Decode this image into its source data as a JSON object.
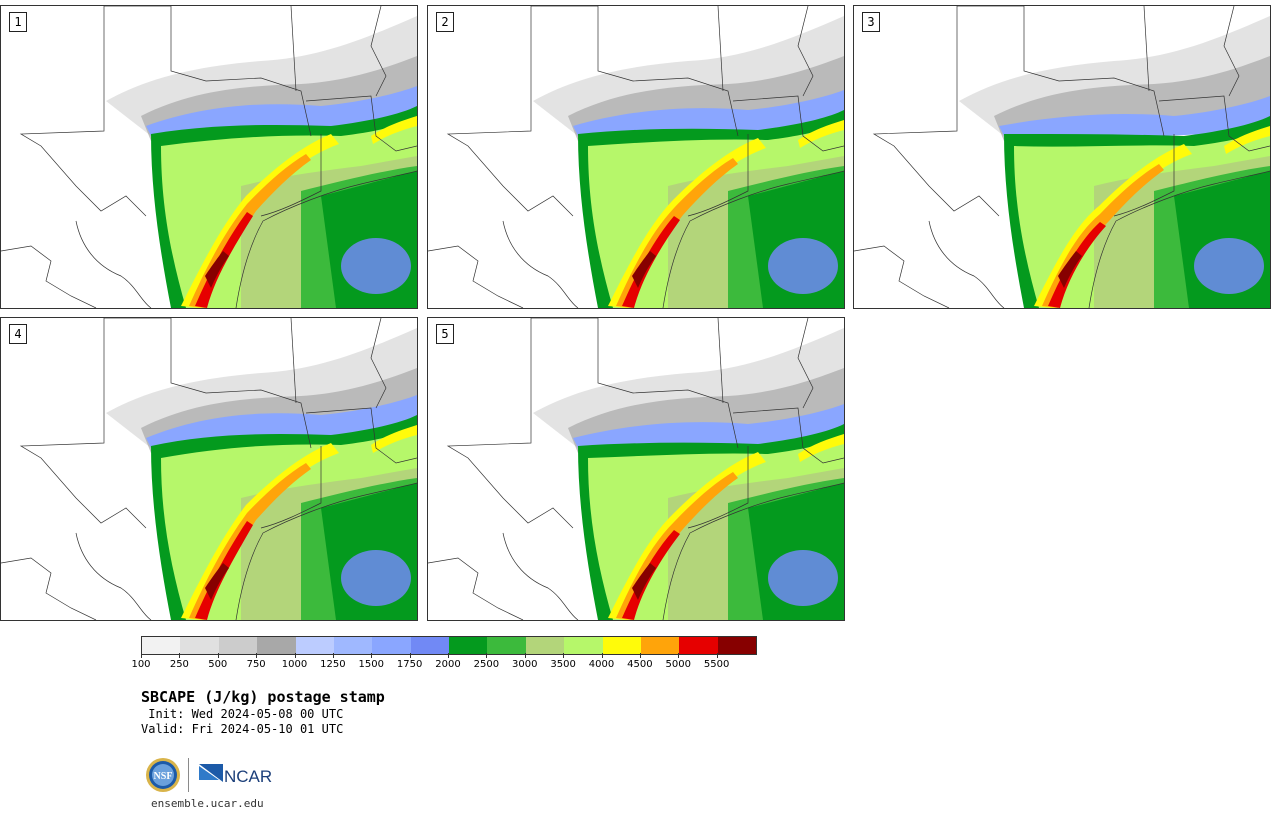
{
  "panels": [
    {
      "label": "1",
      "shift": 0
    },
    {
      "label": "2",
      "shift": 4
    },
    {
      "label": "3",
      "shift": 10
    },
    {
      "label": "4",
      "shift": -3
    },
    {
      "label": "5",
      "shift": 6
    }
  ],
  "colorbar": {
    "colors": [
      "#f2f2f2",
      "#e0e0e0",
      "#cccccc",
      "#a8a8a8",
      "#bcccff",
      "#9fb8ff",
      "#8aa6ff",
      "#7189f5",
      "#049a1e",
      "#3cba3c",
      "#b3d57a",
      "#b6f76a",
      "#fffb0a",
      "#ffa40a",
      "#e60000",
      "#870000"
    ],
    "labels": [
      "100",
      "250",
      "500",
      "750",
      "1000",
      "1250",
      "1500",
      "1750",
      "2000",
      "2500",
      "3000",
      "3500",
      "4000",
      "4500",
      "5000",
      "5500"
    ]
  },
  "title": "SBCAPE (J/kg) postage stamp",
  "init": " Init: Wed 2024-05-08 00 UTC",
  "valid": "Valid: Fri 2024-05-10 01 UTC",
  "logos": {
    "nsf": "NSF",
    "ncar": "NCAR"
  },
  "site": "ensemble.ucar.edu"
}
